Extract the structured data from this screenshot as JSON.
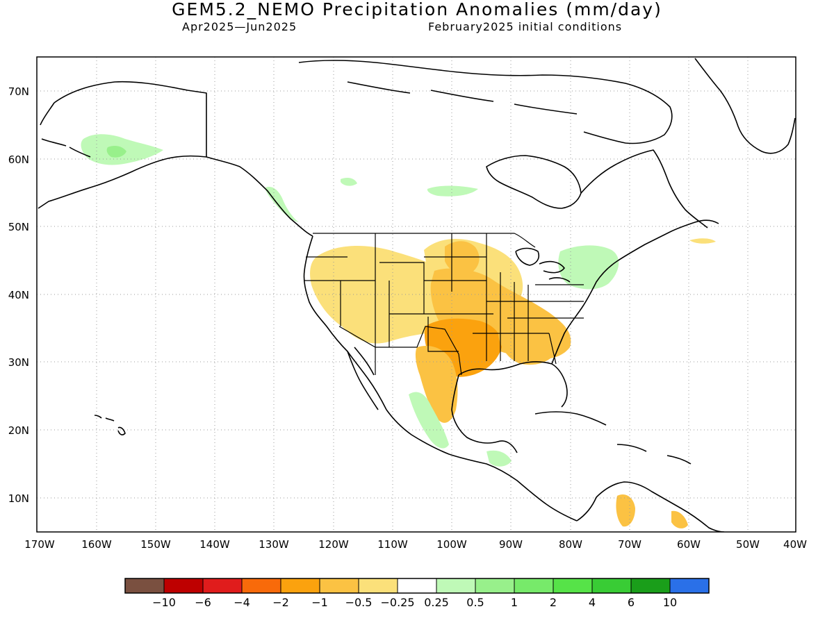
{
  "header": {
    "title": "GEM5.2_NEMO Precipitation Anomalies (mm/day)",
    "period": "Apr2025—Jun2025",
    "initial_conditions": "February2025 initial conditions"
  },
  "map": {
    "region": "North America",
    "lat_labels": [
      "70N",
      "60N",
      "50N",
      "40N",
      "30N",
      "20N",
      "10N"
    ],
    "lon_labels": [
      "170W",
      "160W",
      "150W",
      "140W",
      "130W",
      "120W",
      "110W",
      "100W",
      "90W",
      "80W",
      "70W",
      "60W",
      "50W",
      "40W"
    ],
    "anomalies": [
      {
        "id": "dry-west",
        "category": "-0.5..-0.25"
      },
      {
        "id": "dry-rockies",
        "category": "-0.5..-0.25"
      },
      {
        "id": "dry-central",
        "category": "-1..-0.5"
      },
      {
        "id": "dry-texas",
        "category": "-2..-1"
      },
      {
        "id": "dry-southeast",
        "category": "-1..-0.5"
      },
      {
        "id": "wet-alaska",
        "category": "0.25..0.5"
      },
      {
        "id": "wet-northeast",
        "category": "0.25..0.5"
      },
      {
        "id": "wet-mexico",
        "category": "0.25..0.5"
      },
      {
        "id": "dry-venezuela",
        "category": "-1..-0.5"
      }
    ]
  },
  "colorbar": {
    "colors": [
      "#7a5040",
      "#be0000",
      "#e01c1c",
      "#f86a0a",
      "#fba20e",
      "#fbc243",
      "#fbe07a",
      "#ffffff",
      "#bff9b7",
      "#98f08b",
      "#77ea6a",
      "#56e348",
      "#39cc35",
      "#1a9e1a",
      "#2a70e8"
    ],
    "labels": [
      "−10",
      "−6",
      "−4",
      "−2",
      "−1",
      "−0.5",
      "−0.25",
      "0.25",
      "0.5",
      "1",
      "2",
      "4",
      "6",
      "10"
    ]
  }
}
